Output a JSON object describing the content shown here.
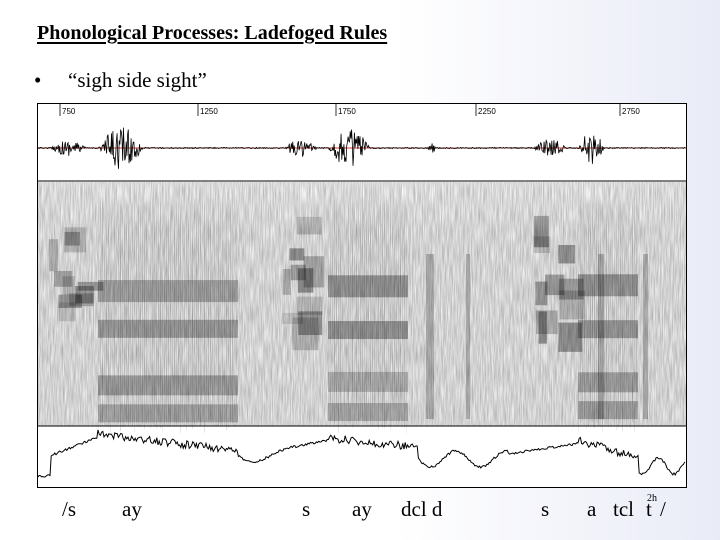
{
  "slide": {
    "title": "Phonological Processes: Ladefoged Rules",
    "bullet": "•",
    "bullet_text": "“sigh side sight”"
  },
  "figure": {
    "waveform_color": "#000000",
    "baseline_color": "#d43a2a",
    "time_ticks": [
      "750",
      "1250",
      "1750",
      "2250",
      "2750"
    ]
  },
  "segments": {
    "labels": [
      "/s",
      "ay",
      "s",
      "ay",
      "dcl d",
      "s",
      "a",
      "tcl",
      "t",
      "/"
    ],
    "superscript": "2h"
  }
}
